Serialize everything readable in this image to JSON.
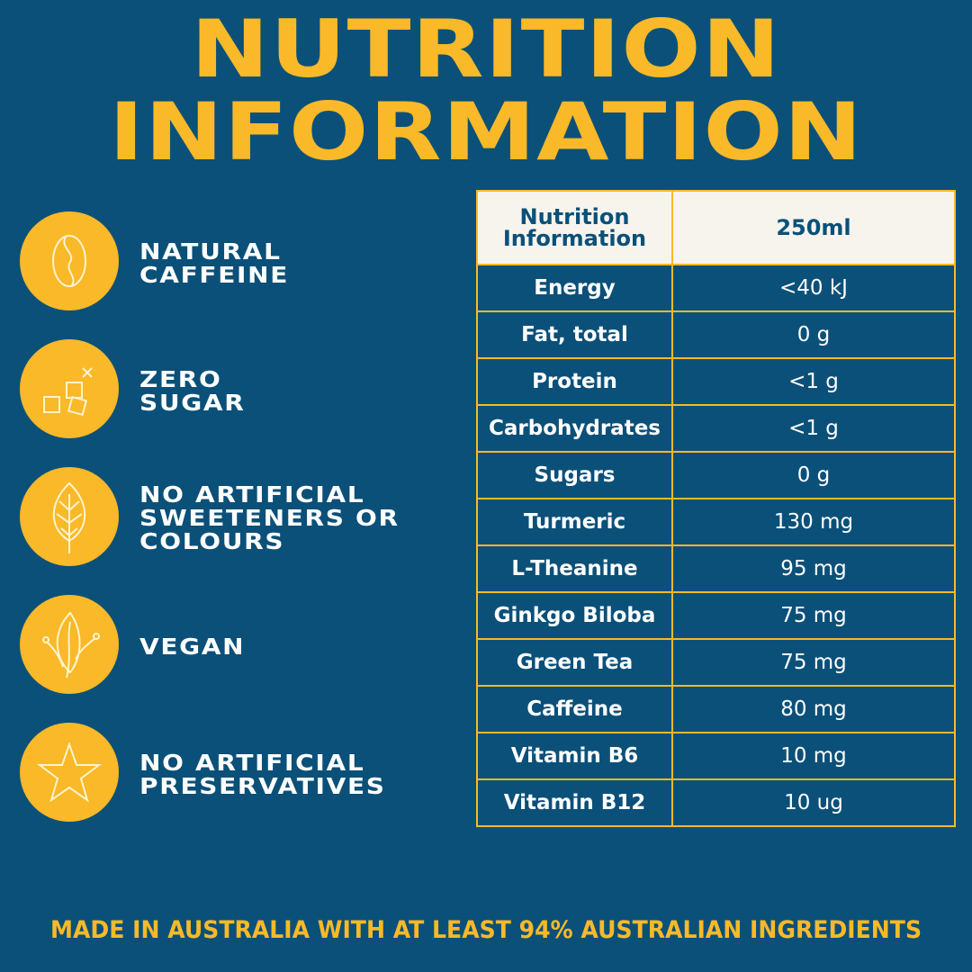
{
  "title": {
    "line1": "NUTRITION",
    "line2": "INFORMATION"
  },
  "colors": {
    "background": "#0b5079",
    "accent": "#f9b928",
    "header_bg": "#f7f4ee",
    "text": "#ffffff"
  },
  "features": [
    {
      "icon": "coffee-bean-icon",
      "label": "NATURAL\nCAFFEINE"
    },
    {
      "icon": "sugar-cubes-icon",
      "label": "ZERO\nSUGAR"
    },
    {
      "icon": "leaf-icon",
      "label": "NO ARTIFICIAL\nSWEETENERS OR\nCOLOURS"
    },
    {
      "icon": "vegan-leaf-icon",
      "label": "VEGAN"
    },
    {
      "icon": "star-icon",
      "label": "NO ARTIFICIAL\nPRESERVATIVES"
    }
  ],
  "table": {
    "header": {
      "col1": "Nutrition\nInformation",
      "col2": "250ml"
    },
    "rows": [
      {
        "name": "Energy",
        "value": "<40 kJ"
      },
      {
        "name": "Fat, total",
        "value": "0 g"
      },
      {
        "name": "Protein",
        "value": "<1 g"
      },
      {
        "name": "Carbohydrates",
        "value": "<1 g"
      },
      {
        "name": "Sugars",
        "value": "0 g"
      },
      {
        "name": "Turmeric",
        "value": "130 mg"
      },
      {
        "name": "L-Theanine",
        "value": "95 mg"
      },
      {
        "name": "Ginkgo Biloba",
        "value": "75 mg"
      },
      {
        "name": "Green Tea",
        "value": "75 mg"
      },
      {
        "name": "Caffeine",
        "value": "80 mg"
      },
      {
        "name": "Vitamin B6",
        "value": "10 mg"
      },
      {
        "name": "Vitamin B12",
        "value": "10 ug"
      }
    ]
  },
  "footer": "MADE IN AUSTRALIA WITH AT LEAST 94% AUSTRALIAN INGREDIENTS"
}
